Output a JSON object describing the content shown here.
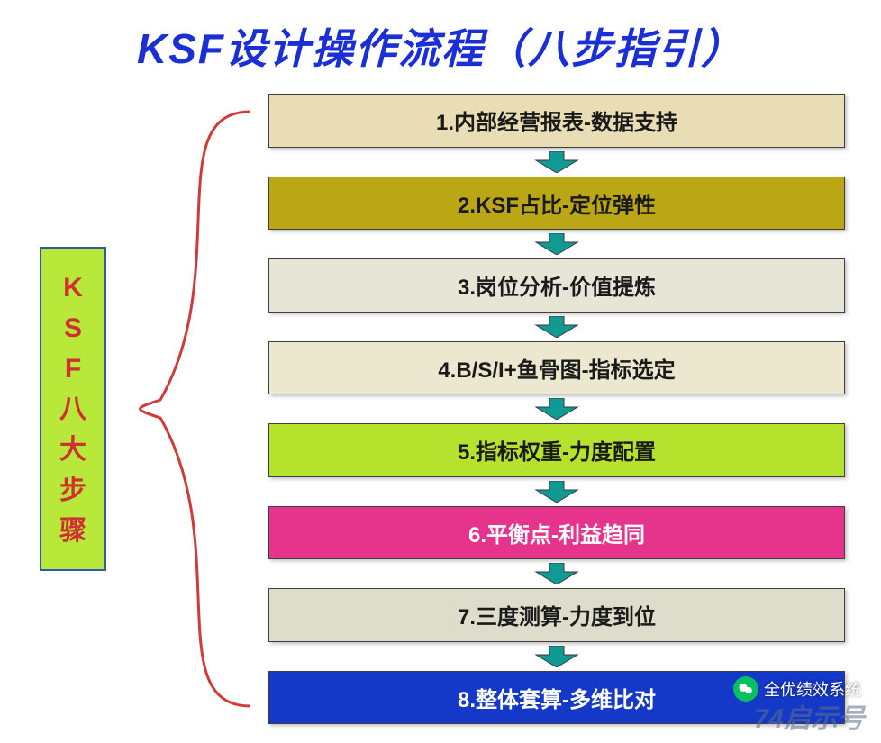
{
  "title": {
    "text": "KSF设计操作流程（八步指引）",
    "color": "#1a2fd6",
    "fontsize": 46
  },
  "sidebar": {
    "label_chars": [
      "K",
      "S",
      "F",
      "八",
      "大",
      "步",
      "骤"
    ],
    "text_color": "#d03030",
    "bg_color": "#b7e83a",
    "border_color": "#2e5aa8",
    "fontsize": 30
  },
  "brace": {
    "color": "#d13a3a",
    "stroke_width": 3
  },
  "arrow": {
    "fill": "#0f9a93",
    "stroke": "#3a3a3a",
    "width": 50,
    "height": 24
  },
  "steps": [
    {
      "label": "1.内部经营报表-数据支持",
      "bg": "#e8ddb4",
      "fg": "#1a1a1a",
      "fontsize": 24
    },
    {
      "label": "2.KSF占比-定位弹性",
      "bg": "#bba616",
      "fg": "#1a1a1a",
      "fontsize": 24
    },
    {
      "label": "3.岗位分析-价值提炼",
      "bg": "#e7e6d6",
      "fg": "#1a1a1a",
      "fontsize": 24
    },
    {
      "label": "4.B/S/I+鱼骨图-指标选定",
      "bg": "#ebe8cf",
      "fg": "#1a1a1a",
      "fontsize": 24
    },
    {
      "label": "5.指标权重-力度配置",
      "bg": "#b5e22c",
      "fg": "#1a1a1a",
      "fontsize": 24
    },
    {
      "label": "6.平衡点-利益趋同",
      "bg": "#e6338b",
      "fg": "#ffffff",
      "fontsize": 24
    },
    {
      "label": "7.三度测算-力度到位",
      "bg": "#dedcca",
      "fg": "#1a1a1a",
      "fontsize": 24
    },
    {
      "label": "8.整体套算-多维比对",
      "bg": "#1438c8",
      "fg": "#ffffff",
      "fontsize": 24
    }
  ],
  "watermark": {
    "text": "全优绩效系统",
    "corner": "74启示号",
    "corner_fontsize": 30
  }
}
